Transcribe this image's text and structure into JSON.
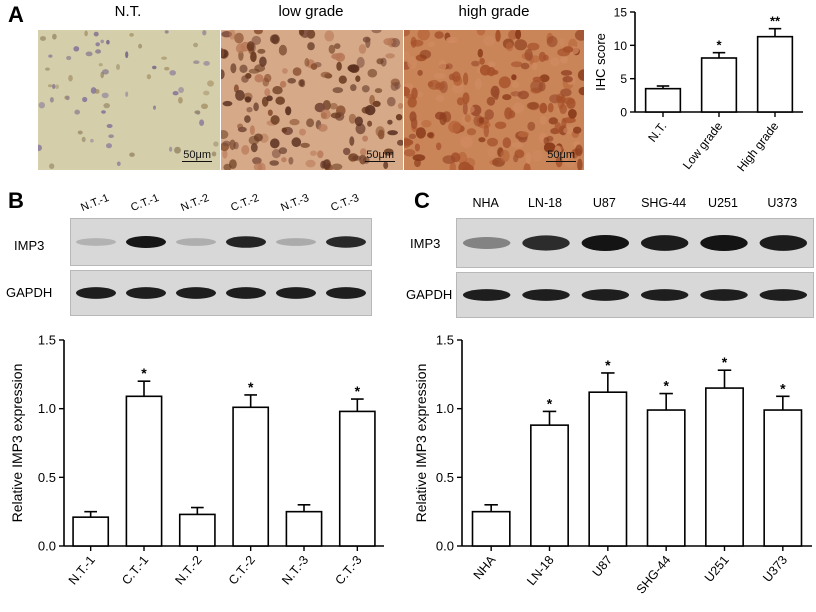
{
  "panel_a": {
    "letter": "A",
    "images": [
      {
        "label": "N.T.",
        "scale": "50μm"
      },
      {
        "label": "low grade",
        "scale": "50μm"
      },
      {
        "label": "high grade",
        "scale": "50μm"
      }
    ]
  },
  "panel_b": {
    "letter": "B",
    "lanes": [
      "N.T.-1",
      "C.T.-1",
      "N.T.-2",
      "C.T.-2",
      "N.T.-3",
      "C.T.-3"
    ],
    "rows": [
      "IMP3",
      "GAPDH"
    ]
  },
  "panel_c": {
    "letter": "C",
    "lanes": [
      "NHA",
      "LN-18",
      "U87",
      "SHG-44",
      "U251",
      "U373"
    ],
    "rows": [
      "IMP3",
      "GAPDH"
    ]
  },
  "band_colors": {
    "dark": "#1a1a1a",
    "light": "#8a8a8a",
    "bg": "#d6d6d6"
  },
  "chart_data": [
    {
      "id": "ihc",
      "type": "bar",
      "categories": [
        "N.T.",
        "Low grade",
        "High grade"
      ],
      "values": [
        3.5,
        8.1,
        11.3
      ],
      "errors": [
        0.4,
        0.8,
        1.2
      ],
      "significance": [
        "",
        "*",
        "**"
      ],
      "ylabel": "IHC score",
      "ylim": [
        0,
        15
      ],
      "yticks": [
        "0",
        "5",
        "10",
        "15"
      ],
      "ytick_values": [
        0,
        5,
        10,
        15
      ]
    },
    {
      "id": "tissue",
      "type": "bar",
      "categories": [
        "N.T.-1",
        "C.T.-1",
        "N.T.-2",
        "C.T.-2",
        "N.T.-3",
        "C.T.-3"
      ],
      "values": [
        0.21,
        1.09,
        0.23,
        1.01,
        0.25,
        0.98
      ],
      "errors": [
        0.04,
        0.11,
        0.05,
        0.09,
        0.05,
        0.09
      ],
      "significance": [
        "",
        "*",
        "",
        "*",
        "",
        "*"
      ],
      "ylabel": "Relative IMP3 expression",
      "ylim": [
        0,
        1.5
      ],
      "yticks": [
        "0.0",
        "0.5",
        "1.0",
        "1.5"
      ],
      "ytick_values": [
        0,
        0.5,
        1.0,
        1.5
      ]
    },
    {
      "id": "cells",
      "type": "bar",
      "categories": [
        "NHA",
        "LN-18",
        "U87",
        "SHG-44",
        "U251",
        "U373"
      ],
      "values": [
        0.25,
        0.88,
        1.12,
        0.99,
        1.15,
        0.99
      ],
      "errors": [
        0.05,
        0.1,
        0.14,
        0.12,
        0.13,
        0.1
      ],
      "significance": [
        "",
        "*",
        "*",
        "*",
        "*",
        "*"
      ],
      "ylabel": "Relative IMP3 expression",
      "ylim": [
        0,
        1.5
      ],
      "yticks": [
        "0.0",
        "0.5",
        "1.0",
        "1.5"
      ],
      "ytick_values": [
        0,
        0.5,
        1.0,
        1.5
      ]
    }
  ]
}
